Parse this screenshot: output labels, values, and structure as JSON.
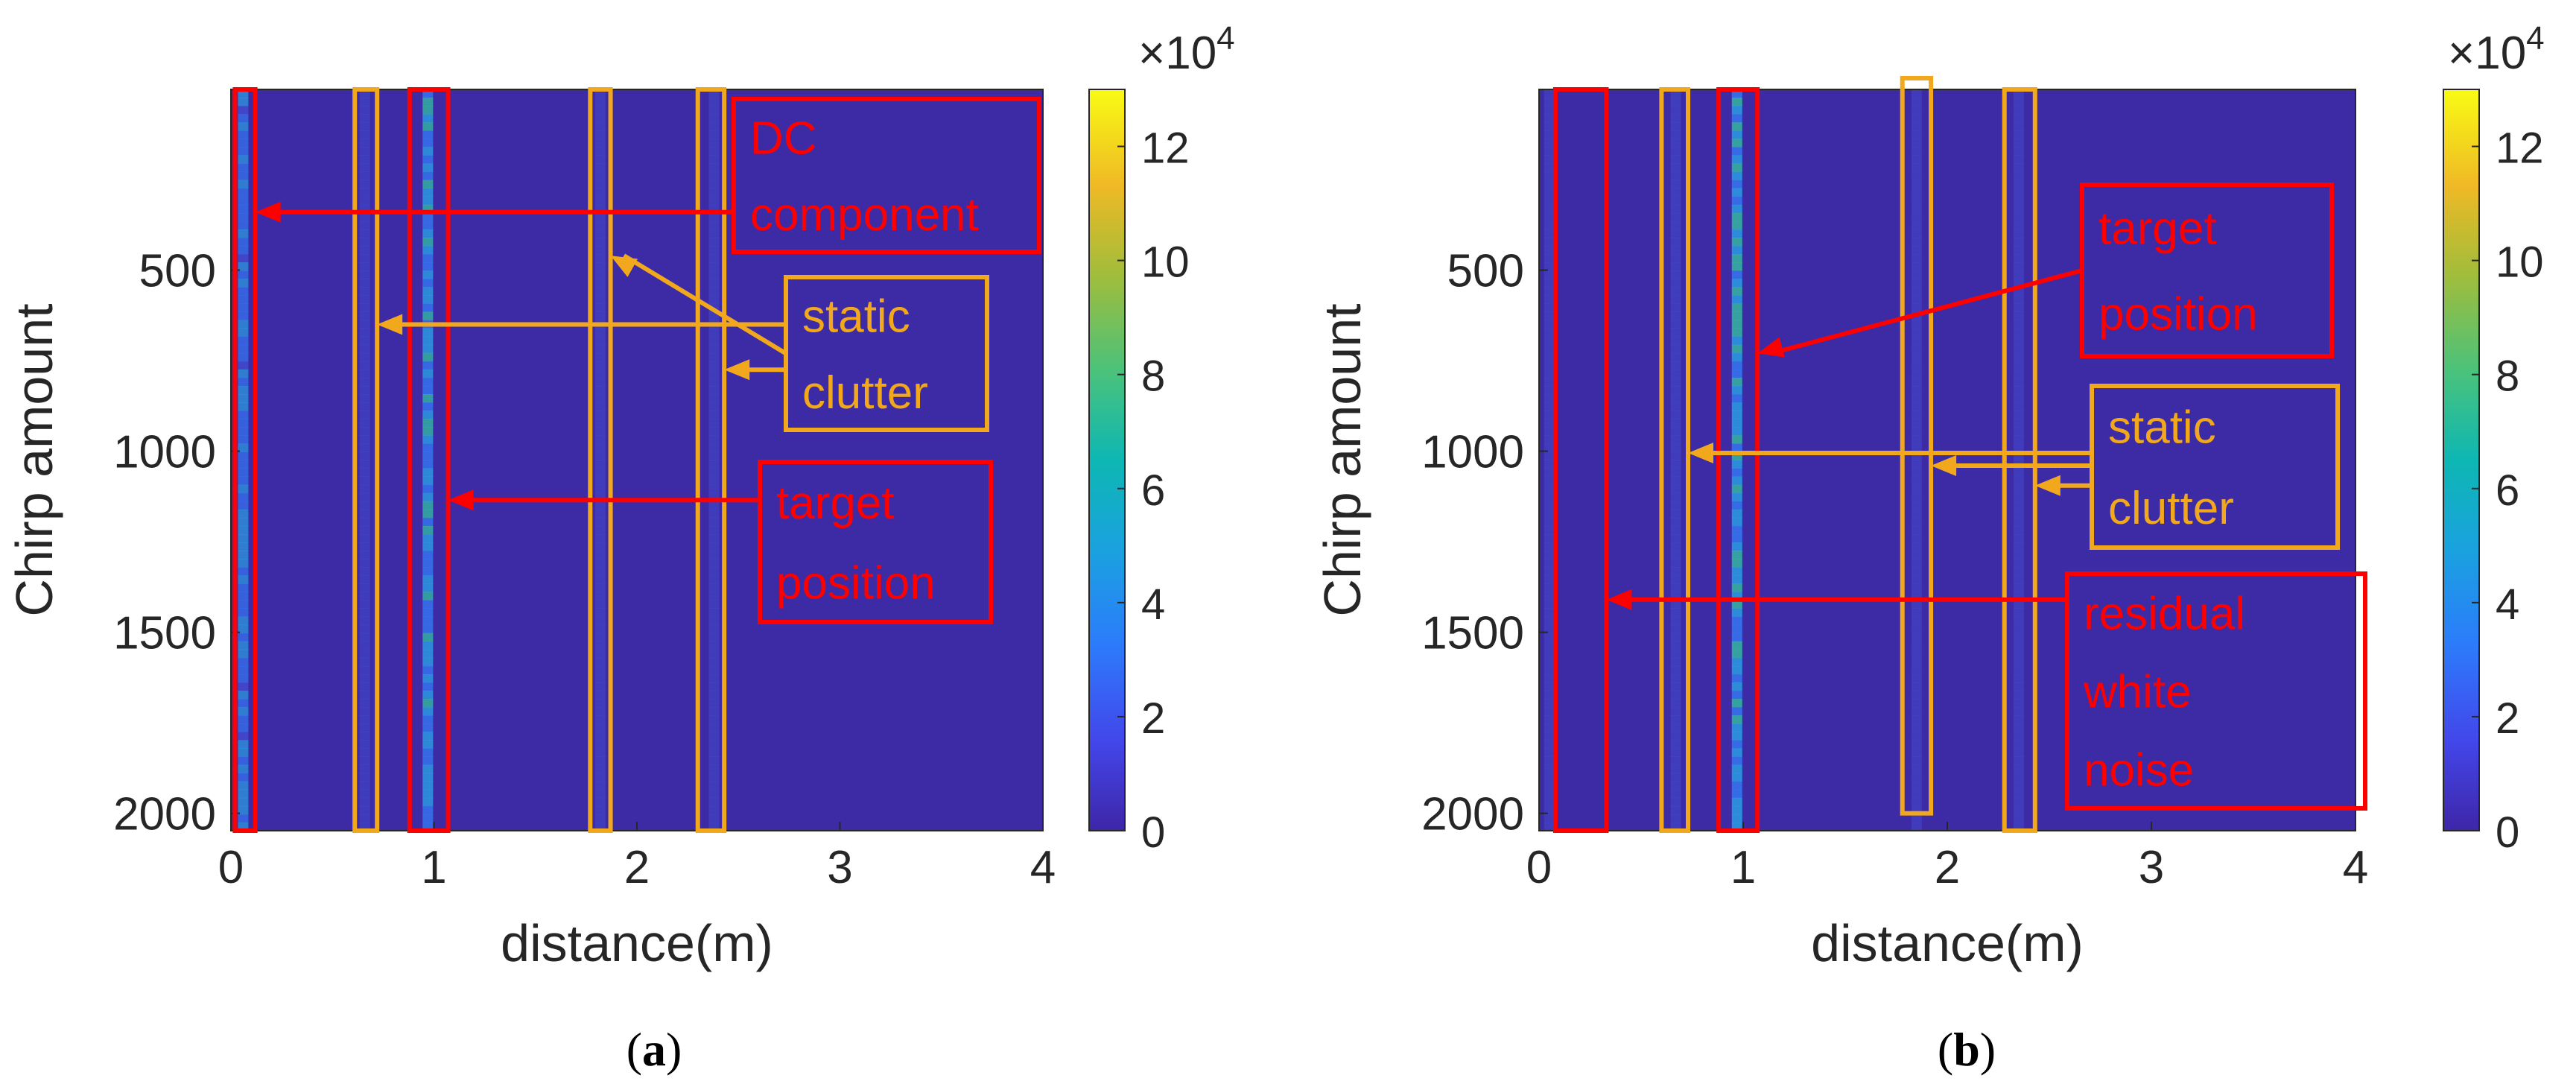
{
  "chart_data": [
    {
      "panel": "a",
      "type": "heatmap",
      "caption_letter": "a",
      "xlabel": "distance(m)",
      "ylabel": "Chirp amount",
      "xlim": [
        0,
        4
      ],
      "ylim": [
        2048,
        1
      ],
      "y_reversed": true,
      "xticks": [
        0,
        1,
        2,
        3,
        4
      ],
      "xtick_labels": [
        "0",
        "1",
        "2",
        "3",
        "4"
      ],
      "yticks": [
        500,
        1000,
        1500,
        2000
      ],
      "ytick_labels": [
        "500",
        "1000",
        "1500",
        "2000"
      ],
      "colormap": "parula",
      "clim": [
        0,
        130000
      ],
      "colorbar_ticks": [
        0,
        20000,
        40000,
        60000,
        80000,
        100000,
        120000
      ],
      "colorbar_tick_labels": [
        "0",
        "2",
        "4",
        "6",
        "8",
        "10",
        "12"
      ],
      "colorbar_exponent_label": "×10",
      "colorbar_exponent": "4",
      "energy_columns": [
        {
          "x": 0.06,
          "intensity": 0.55
        },
        {
          "x": 0.66,
          "intensity": 0.15
        },
        {
          "x": 0.97,
          "intensity": 0.7
        },
        {
          "x": 1.82,
          "intensity": 0.12
        },
        {
          "x": 2.38,
          "intensity": 0.12
        }
      ],
      "boxes": [
        {
          "x0": 0.02,
          "x1": 0.12,
          "y0": 1,
          "y1": 2048,
          "color": "#ff0000"
        },
        {
          "x0": 0.61,
          "x1": 0.72,
          "y0": 1,
          "y1": 2048,
          "color": "#f2a81d"
        },
        {
          "x0": 0.88,
          "x1": 1.07,
          "y0": 1,
          "y1": 2048,
          "color": "#ff0000"
        },
        {
          "x0": 1.77,
          "x1": 1.87,
          "y0": 1,
          "y1": 2048,
          "color": "#f2a81d"
        },
        {
          "x0": 2.3,
          "x1": 2.43,
          "y0": 1,
          "y1": 2048,
          "color": "#f2a81d"
        }
      ],
      "annotations": [
        {
          "lines": [
            "DC",
            "component"
          ],
          "color": "#ff0000",
          "arrows": [
            {
              "x": 0.12,
              "y": 340
            }
          ]
        },
        {
          "lines": [
            "static",
            "clutter"
          ],
          "color": "#f2a81d",
          "arrows": [
            {
              "x": 0.72,
              "y": 650
            },
            {
              "x": 1.87,
              "y": 460
            },
            {
              "x": 2.43,
              "y": 775
            }
          ]
        },
        {
          "lines": [
            "target",
            "position"
          ],
          "color": "#ff0000",
          "arrows": [
            {
              "x": 1.07,
              "y": 1135
            }
          ]
        }
      ]
    },
    {
      "panel": "b",
      "type": "heatmap",
      "caption_letter": "b",
      "xlabel": "distance(m)",
      "ylabel": "Chirp amount",
      "xlim": [
        0,
        4
      ],
      "ylim": [
        2048,
        1
      ],
      "y_reversed": true,
      "xticks": [
        0,
        1,
        2,
        3,
        4
      ],
      "xtick_labels": [
        "0",
        "1",
        "2",
        "3",
        "4"
      ],
      "yticks": [
        500,
        1000,
        1500,
        2000
      ],
      "ytick_labels": [
        "500",
        "1000",
        "1500",
        "2000"
      ],
      "colormap": "parula",
      "clim": [
        0,
        130000
      ],
      "colorbar_ticks": [
        0,
        20000,
        40000,
        60000,
        80000,
        100000,
        120000
      ],
      "colorbar_tick_labels": [
        "0",
        "2",
        "4",
        "6",
        "8",
        "10",
        "12"
      ],
      "colorbar_exponent_label": "×10",
      "colorbar_exponent": "4",
      "energy_columns": [
        {
          "x": 0.05,
          "intensity": 0.1
        },
        {
          "x": 0.67,
          "intensity": 0.18
        },
        {
          "x": 0.97,
          "intensity": 0.75
        },
        {
          "x": 1.85,
          "intensity": 0.1
        },
        {
          "x": 2.35,
          "intensity": 0.1
        }
      ],
      "boxes": [
        {
          "x0": 0.08,
          "x1": 0.33,
          "y0": 1,
          "y1": 2048,
          "color": "#ff0000"
        },
        {
          "x0": 0.6,
          "x1": 0.73,
          "y0": 1,
          "y1": 2048,
          "color": "#f2a81d"
        },
        {
          "x0": 0.88,
          "x1": 1.07,
          "y0": 1,
          "y1": 2048,
          "color": "#ff0000"
        },
        {
          "x0": 1.78,
          "x1": 1.92,
          "y0": -30,
          "y1": 2000,
          "color": "#f2a81d"
        },
        {
          "x0": 2.28,
          "x1": 2.43,
          "y0": 1,
          "y1": 2048,
          "color": "#f2a81d"
        }
      ],
      "annotations": [
        {
          "lines": [
            "target",
            "position"
          ],
          "color": "#ff0000",
          "arrows": [
            {
              "x": 1.07,
              "y": 730
            }
          ]
        },
        {
          "lines": [
            "static",
            "clutter"
          ],
          "color": "#f2a81d",
          "arrows": [
            {
              "x": 0.73,
              "y": 1005
            },
            {
              "x": 1.92,
              "y": 1040
            },
            {
              "x": 2.43,
              "y": 1095
            }
          ]
        },
        {
          "lines": [
            "residual",
            "white",
            "noise"
          ],
          "color": "#ff0000",
          "arrows": [
            {
              "x": 0.33,
              "y": 1410
            }
          ]
        }
      ]
    }
  ]
}
